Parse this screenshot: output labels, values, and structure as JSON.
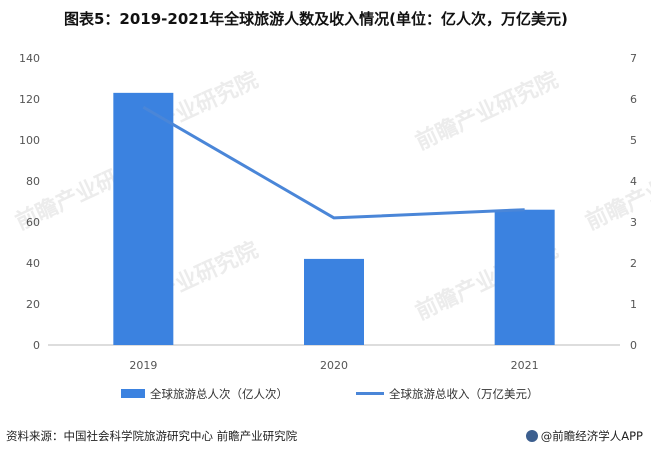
{
  "title": "图表5：2019-2021年全球旅游人数及收入情况(单位：亿人次，万亿美元)",
  "source": "资料来源：中国社会科学院旅游研究中心 前瞻产业研究院",
  "brand": "@前瞻经济学人APP",
  "watermark": "前瞻产业研究院",
  "chart_data": {
    "type": "bar",
    "categories": [
      "2019",
      "2020",
      "2021"
    ],
    "series": [
      {
        "name": "全球旅游总人次（亿人次）",
        "type": "bar",
        "axis": "left",
        "color": "#3b82e0",
        "values": [
          123,
          42,
          66
        ]
      },
      {
        "name": "全球旅游总收入（万亿美元）",
        "type": "line",
        "axis": "right",
        "color": "#4a86d8",
        "values": [
          5.8,
          3.1,
          3.3
        ]
      }
    ],
    "y_left": {
      "min": 0,
      "max": 140,
      "ticks": [
        "0",
        "20",
        "40",
        "60",
        "80",
        "100",
        "120",
        "140"
      ]
    },
    "y_right": {
      "min": 0,
      "max": 7,
      "ticks": [
        "0",
        "1",
        "2",
        "3",
        "4",
        "5",
        "6",
        "7"
      ]
    },
    "grid": false,
    "legend_position": "bottom"
  }
}
